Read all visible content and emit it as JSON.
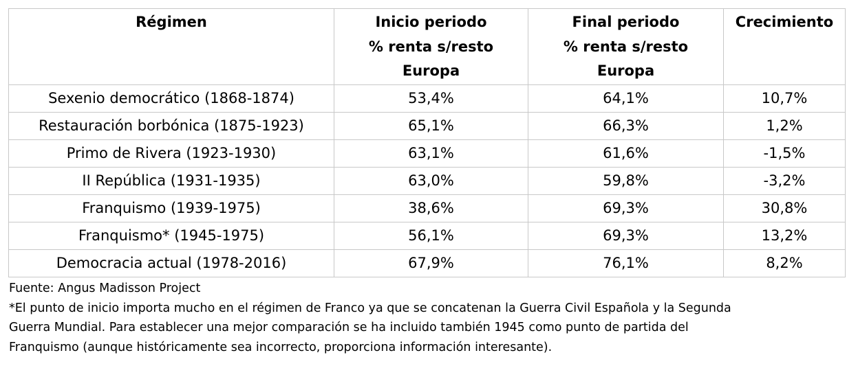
{
  "table": {
    "headers": [
      [
        "Régimen"
      ],
      [
        "Inicio periodo",
        "% renta s/resto",
        "Europa"
      ],
      [
        "Final periodo",
        "% renta s/resto",
        "Europa"
      ],
      [
        "Crecimiento"
      ]
    ],
    "rows": [
      [
        "Sexenio democrático (1868-1874)",
        "53,4%",
        "64,1%",
        "10,7%"
      ],
      [
        "Restauración borbónica (1875-1923)",
        "65,1%",
        "66,3%",
        "1,2%"
      ],
      [
        "Primo de Rivera (1923-1930)",
        "63,1%",
        "61,6%",
        "-1,5%"
      ],
      [
        "II República (1931-1935)",
        "63,0%",
        "59,8%",
        "-3,2%"
      ],
      [
        "Franquismo (1939-1975)",
        "38,6%",
        "69,3%",
        "30,8%"
      ],
      [
        "Franquismo* (1945-1975)",
        "56,1%",
        "69,3%",
        "13,2%"
      ],
      [
        "Democracia actual (1978-2016)",
        "67,9%",
        "76,1%",
        "8,2%"
      ]
    ]
  },
  "notes": {
    "source": "Fuente: Angus Madisson Project",
    "footnote_lines": [
      "*El punto de inicio importa mucho en el régimen de Franco ya que se concatenan la Guerra Civil Española y la Segunda",
      "Guerra Mundial. Para establecer una mejor comparación se ha incluido también 1945 como punto de partida del",
      "Franquismo (aunque históricamente sea incorrecto, proporciona información interesante)."
    ]
  }
}
